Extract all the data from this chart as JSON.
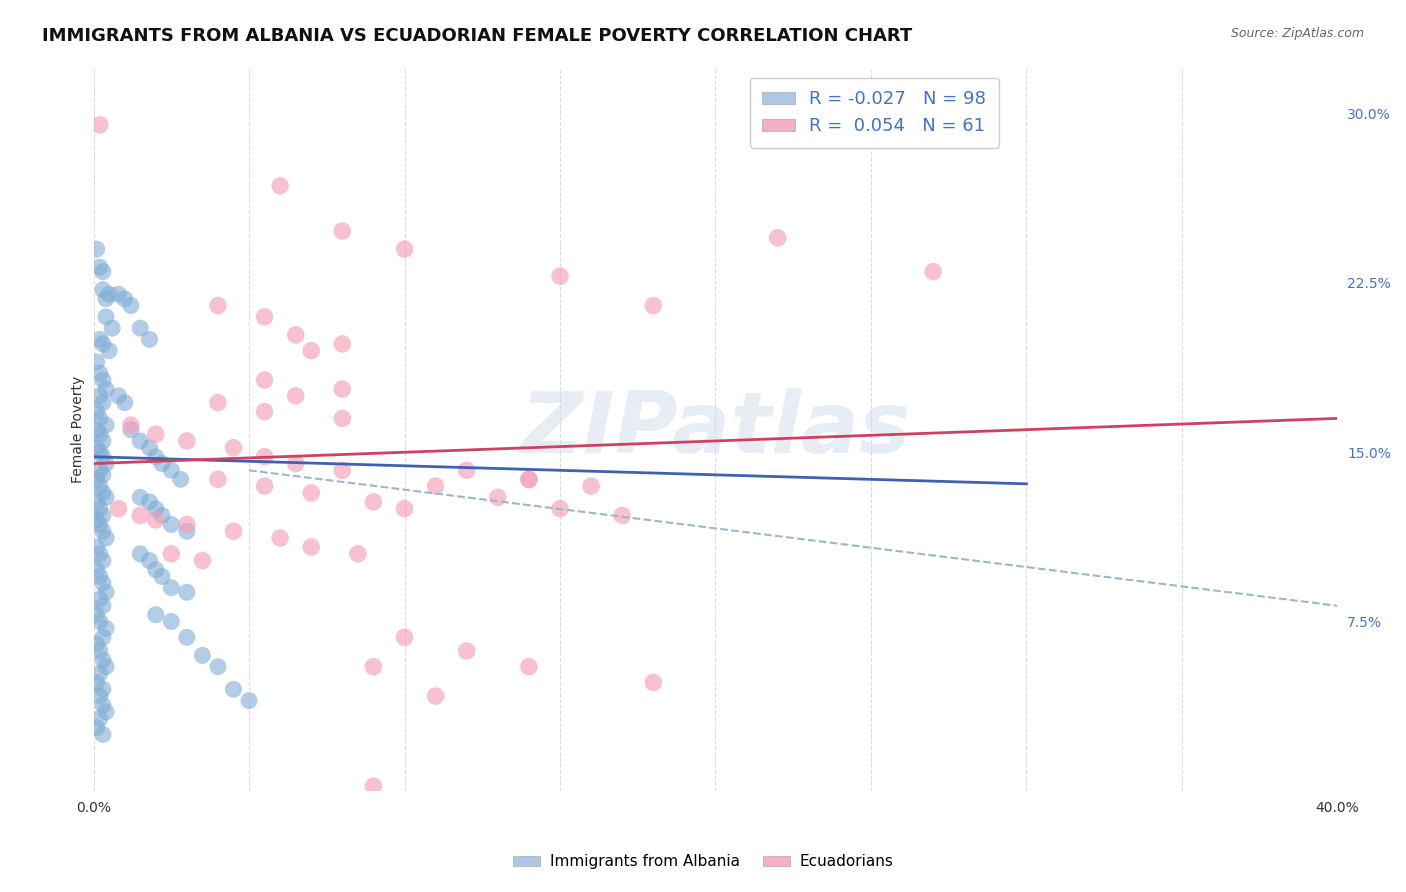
{
  "title": "IMMIGRANTS FROM ALBANIA VS ECUADORIAN FEMALE POVERTY CORRELATION CHART",
  "source": "Source: ZipAtlas.com",
  "ylabel": "Female Poverty",
  "xlim": [
    0.0,
    0.4
  ],
  "ylim": [
    0.0,
    0.32
  ],
  "xticks": [
    0.0,
    0.05,
    0.1,
    0.15,
    0.2,
    0.25,
    0.3,
    0.35,
    0.4
  ],
  "xticklabels": [
    "0.0%",
    "",
    "",
    "",
    "",
    "",
    "",
    "",
    "40.0%"
  ],
  "yticks_right": [
    0.075,
    0.15,
    0.225,
    0.3
  ],
  "ytick_labels_right": [
    "7.5%",
    "15.0%",
    "22.5%",
    "30.0%"
  ],
  "watermark": "ZIPatlas",
  "watermark_color": "#c8d8e8",
  "legend_color1": "#aec6e8",
  "legend_color2": "#f4b0c4",
  "background_color": "#ffffff",
  "grid_color": "#cccccc",
  "blue_scatter_color": "#7fadd4",
  "pink_scatter_color": "#f4a0b8",
  "blue_line_color": "#4060b0",
  "pink_line_color": "#d04060",
  "blue_dash_color": "#99b8cc",
  "title_fontsize": 13,
  "axis_label_fontsize": 10,
  "tick_fontsize": 10,
  "legend_fontsize": 13,
  "scatter_blue": [
    [
      0.001,
      0.24
    ],
    [
      0.002,
      0.232
    ],
    [
      0.003,
      0.23
    ],
    [
      0.003,
      0.222
    ],
    [
      0.004,
      0.218
    ],
    [
      0.005,
      0.22
    ],
    [
      0.004,
      0.21
    ],
    [
      0.006,
      0.205
    ],
    [
      0.002,
      0.2
    ],
    [
      0.003,
      0.198
    ],
    [
      0.005,
      0.195
    ],
    [
      0.001,
      0.19
    ],
    [
      0.002,
      0.185
    ],
    [
      0.003,
      0.182
    ],
    [
      0.004,
      0.178
    ],
    [
      0.002,
      0.175
    ],
    [
      0.003,
      0.172
    ],
    [
      0.001,
      0.168
    ],
    [
      0.002,
      0.165
    ],
    [
      0.004,
      0.162
    ],
    [
      0.001,
      0.16
    ],
    [
      0.002,
      0.158
    ],
    [
      0.003,
      0.155
    ],
    [
      0.001,
      0.152
    ],
    [
      0.002,
      0.15
    ],
    [
      0.003,
      0.148
    ],
    [
      0.004,
      0.145
    ],
    [
      0.002,
      0.142
    ],
    [
      0.003,
      0.14
    ],
    [
      0.001,
      0.138
    ],
    [
      0.002,
      0.135
    ],
    [
      0.003,
      0.132
    ],
    [
      0.004,
      0.13
    ],
    [
      0.001,
      0.128
    ],
    [
      0.002,
      0.125
    ],
    [
      0.003,
      0.122
    ],
    [
      0.001,
      0.12
    ],
    [
      0.002,
      0.118
    ],
    [
      0.003,
      0.115
    ],
    [
      0.004,
      0.112
    ],
    [
      0.001,
      0.108
    ],
    [
      0.002,
      0.105
    ],
    [
      0.003,
      0.102
    ],
    [
      0.001,
      0.098
    ],
    [
      0.002,
      0.095
    ],
    [
      0.003,
      0.092
    ],
    [
      0.004,
      0.088
    ],
    [
      0.002,
      0.085
    ],
    [
      0.003,
      0.082
    ],
    [
      0.001,
      0.078
    ],
    [
      0.002,
      0.075
    ],
    [
      0.004,
      0.072
    ],
    [
      0.003,
      0.068
    ],
    [
      0.001,
      0.065
    ],
    [
      0.002,
      0.062
    ],
    [
      0.003,
      0.058
    ],
    [
      0.004,
      0.055
    ],
    [
      0.002,
      0.052
    ],
    [
      0.001,
      0.048
    ],
    [
      0.003,
      0.045
    ],
    [
      0.002,
      0.042
    ],
    [
      0.003,
      0.038
    ],
    [
      0.004,
      0.035
    ],
    [
      0.002,
      0.032
    ],
    [
      0.001,
      0.028
    ],
    [
      0.003,
      0.025
    ],
    [
      0.008,
      0.22
    ],
    [
      0.01,
      0.218
    ],
    [
      0.012,
      0.215
    ],
    [
      0.008,
      0.175
    ],
    [
      0.01,
      0.172
    ],
    [
      0.015,
      0.205
    ],
    [
      0.018,
      0.2
    ],
    [
      0.012,
      0.16
    ],
    [
      0.015,
      0.155
    ],
    [
      0.018,
      0.152
    ],
    [
      0.02,
      0.148
    ],
    [
      0.022,
      0.145
    ],
    [
      0.025,
      0.142
    ],
    [
      0.028,
      0.138
    ],
    [
      0.015,
      0.13
    ],
    [
      0.018,
      0.128
    ],
    [
      0.02,
      0.125
    ],
    [
      0.022,
      0.122
    ],
    [
      0.025,
      0.118
    ],
    [
      0.03,
      0.115
    ],
    [
      0.015,
      0.105
    ],
    [
      0.018,
      0.102
    ],
    [
      0.02,
      0.098
    ],
    [
      0.022,
      0.095
    ],
    [
      0.025,
      0.09
    ],
    [
      0.03,
      0.088
    ],
    [
      0.02,
      0.078
    ],
    [
      0.025,
      0.075
    ],
    [
      0.03,
      0.068
    ],
    [
      0.035,
      0.06
    ],
    [
      0.04,
      0.055
    ],
    [
      0.045,
      0.045
    ],
    [
      0.05,
      0.04
    ]
  ],
  "scatter_pink": [
    [
      0.002,
      0.295
    ],
    [
      0.06,
      0.268
    ],
    [
      0.08,
      0.248
    ],
    [
      0.1,
      0.24
    ],
    [
      0.04,
      0.215
    ],
    [
      0.055,
      0.21
    ],
    [
      0.065,
      0.202
    ],
    [
      0.08,
      0.198
    ],
    [
      0.15,
      0.228
    ],
    [
      0.18,
      0.215
    ],
    [
      0.22,
      0.245
    ],
    [
      0.27,
      0.23
    ],
    [
      0.07,
      0.195
    ],
    [
      0.055,
      0.182
    ],
    [
      0.08,
      0.178
    ],
    [
      0.065,
      0.175
    ],
    [
      0.04,
      0.172
    ],
    [
      0.055,
      0.168
    ],
    [
      0.08,
      0.165
    ],
    [
      0.012,
      0.162
    ],
    [
      0.02,
      0.158
    ],
    [
      0.03,
      0.155
    ],
    [
      0.045,
      0.152
    ],
    [
      0.055,
      0.148
    ],
    [
      0.065,
      0.145
    ],
    [
      0.08,
      0.142
    ],
    [
      0.04,
      0.138
    ],
    [
      0.055,
      0.135
    ],
    [
      0.07,
      0.132
    ],
    [
      0.09,
      0.128
    ],
    [
      0.1,
      0.125
    ],
    [
      0.12,
      0.142
    ],
    [
      0.14,
      0.138
    ],
    [
      0.16,
      0.135
    ],
    [
      0.008,
      0.125
    ],
    [
      0.015,
      0.122
    ],
    [
      0.02,
      0.12
    ],
    [
      0.03,
      0.118
    ],
    [
      0.045,
      0.115
    ],
    [
      0.06,
      0.112
    ],
    [
      0.07,
      0.108
    ],
    [
      0.085,
      0.105
    ],
    [
      0.11,
      0.135
    ],
    [
      0.13,
      0.13
    ],
    [
      0.15,
      0.125
    ],
    [
      0.17,
      0.122
    ],
    [
      0.025,
      0.105
    ],
    [
      0.035,
      0.102
    ],
    [
      0.14,
      0.138
    ],
    [
      0.1,
      0.068
    ],
    [
      0.12,
      0.062
    ],
    [
      0.14,
      0.055
    ],
    [
      0.18,
      0.048
    ],
    [
      0.09,
      0.055
    ],
    [
      0.11,
      0.042
    ],
    [
      0.09,
      0.002
    ]
  ],
  "blue_solid_line": {
    "x0": 0.0,
    "x1": 0.3,
    "y0": 0.148,
    "y1": 0.136
  },
  "blue_dash_line": {
    "x0": 0.05,
    "x1": 0.4,
    "y0": 0.142,
    "y1": 0.082
  },
  "pink_solid_line": {
    "x0": 0.0,
    "x1": 0.4,
    "y0": 0.145,
    "y1": 0.165
  }
}
